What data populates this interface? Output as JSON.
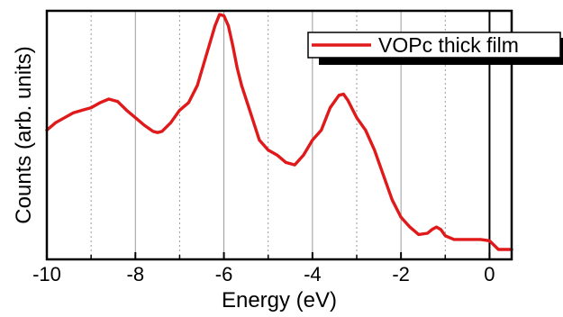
{
  "chart_data": {
    "type": "line",
    "title": "",
    "xlabel": "Energy (eV)",
    "ylabel": "Counts (arb. units)",
    "xlim": [
      -10,
      0.5
    ],
    "ylim": [
      0,
      1
    ],
    "x_ticks": [
      -10,
      -8,
      -6,
      -4,
      -2,
      0
    ],
    "x_tick_labels": [
      "-10",
      "-8",
      "-6",
      "-4",
      "-2",
      "0"
    ],
    "minor_x_ticks": [
      -9,
      -7,
      -5,
      -3,
      -1
    ],
    "y_tick_labels_shown": false,
    "grid": "vertical dotted at odd energies, vertical solid at even energies",
    "reference_line_x": 0,
    "legend_position": "top-right",
    "colors": {
      "series": "#e01a1a",
      "axis": "#000000",
      "grid": "#9a9a9a"
    },
    "series": [
      {
        "name": "VOPc thick film",
        "x": [
          -10,
          -9.8,
          -9.6,
          -9.4,
          -9.2,
          -9.0,
          -8.8,
          -8.6,
          -8.4,
          -8.2,
          -8.0,
          -7.8,
          -7.6,
          -7.5,
          -7.4,
          -7.2,
          -7.0,
          -6.8,
          -6.6,
          -6.4,
          -6.2,
          -6.1,
          -6.0,
          -5.9,
          -5.8,
          -5.7,
          -5.6,
          -5.4,
          -5.2,
          -5.0,
          -4.8,
          -4.6,
          -4.4,
          -4.2,
          -4.0,
          -3.8,
          -3.6,
          -3.4,
          -3.3,
          -3.2,
          -3.0,
          -2.8,
          -2.6,
          -2.4,
          -2.2,
          -2.0,
          -1.8,
          -1.6,
          -1.4,
          -1.3,
          -1.2,
          -1.1,
          -1.0,
          -0.8,
          -0.6,
          -0.4,
          -0.2,
          0.0,
          0.2,
          0.4,
          0.5
        ],
        "y": [
          0.52,
          0.55,
          0.57,
          0.59,
          0.6,
          0.61,
          0.63,
          0.645,
          0.635,
          0.6,
          0.57,
          0.54,
          0.515,
          0.51,
          0.515,
          0.55,
          0.6,
          0.63,
          0.7,
          0.82,
          0.94,
          0.985,
          0.98,
          0.94,
          0.86,
          0.77,
          0.7,
          0.59,
          0.48,
          0.44,
          0.42,
          0.39,
          0.38,
          0.42,
          0.48,
          0.52,
          0.61,
          0.66,
          0.665,
          0.64,
          0.57,
          0.52,
          0.44,
          0.34,
          0.24,
          0.17,
          0.13,
          0.1,
          0.105,
          0.12,
          0.13,
          0.12,
          0.095,
          0.08,
          0.08,
          0.08,
          0.08,
          0.075,
          0.04,
          0.04,
          0.04
        ]
      }
    ]
  }
}
